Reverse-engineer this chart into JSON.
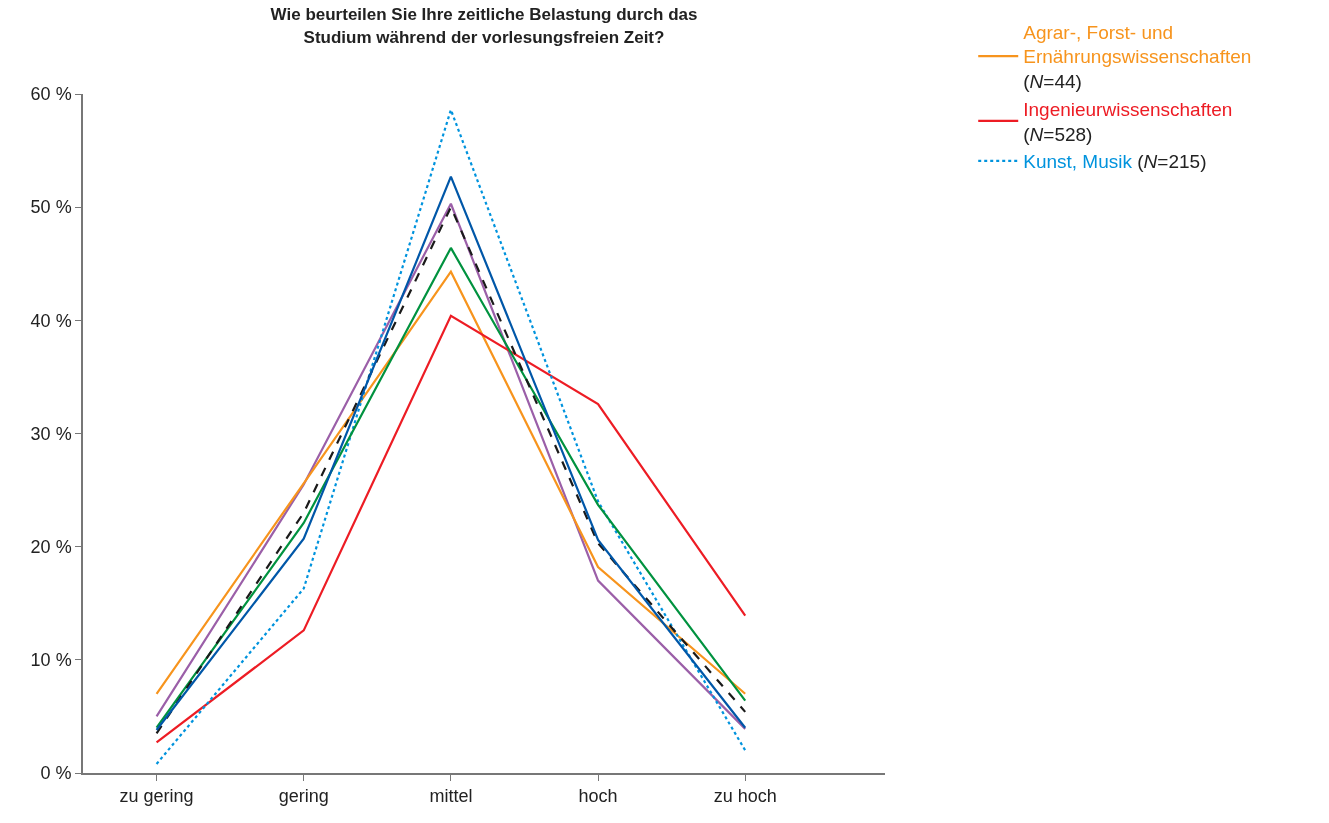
{
  "chart_data": {
    "type": "line",
    "title": "Wie beurteilen Sie Ihre zeitliche Belastung durch das Studium während der vorlesungsfreien Zeit?",
    "categories": [
      "zu gering",
      "gering",
      "mittel",
      "hoch",
      "zu hoch"
    ],
    "series": [
      {
        "color": "#9b5fa8",
        "line_style": "solid",
        "values": [
          5.0,
          25.5,
          50.3,
          17.0,
          3.9
        ]
      },
      {
        "name": "Agrar-, Forst- und Ernährungswissenschaften (N=44)",
        "color": "#f7941d",
        "line_style": "solid",
        "values": [
          7.0,
          25.6,
          44.3,
          18.2,
          7.0
        ]
      },
      {
        "name": "Ingenieurwissenschaften (N=528)",
        "color": "#ed1c24",
        "line_style": "solid",
        "values": [
          2.7,
          12.6,
          40.4,
          32.6,
          13.9
        ]
      },
      {
        "name": "Kunst, Musik (N=215)",
        "color": "#0093dd",
        "line_style": "dotted",
        "values": [
          0.8,
          16.3,
          58.6,
          24.0,
          2.0
        ]
      },
      {
        "color": "#00923f",
        "line_style": "solid",
        "values": [
          4.0,
          22.1,
          46.4,
          23.7,
          6.4
        ]
      },
      {
        "color": "#1a1a1a",
        "line_style": "dashed",
        "values": [
          3.5,
          23.0,
          50.0,
          20.3,
          5.4
        ]
      },
      {
        "color": "#0057a8",
        "line_style": "solid",
        "values": [
          3.8,
          20.7,
          52.7,
          20.6,
          4.0
        ]
      }
    ],
    "ylim": [
      0,
      60
    ],
    "yticks": [
      {
        "value": 0,
        "label": "0 %"
      },
      {
        "value": 10,
        "label": "10 %"
      },
      {
        "value": 20,
        "label": "20 %"
      },
      {
        "value": 30,
        "label": "30 %"
      },
      {
        "value": 40,
        "label": "40 %"
      },
      {
        "value": 50,
        "label": "50 %"
      },
      {
        "value": 60,
        "label": "60 %"
      }
    ],
    "legend": "top right",
    "marker": "none"
  }
}
